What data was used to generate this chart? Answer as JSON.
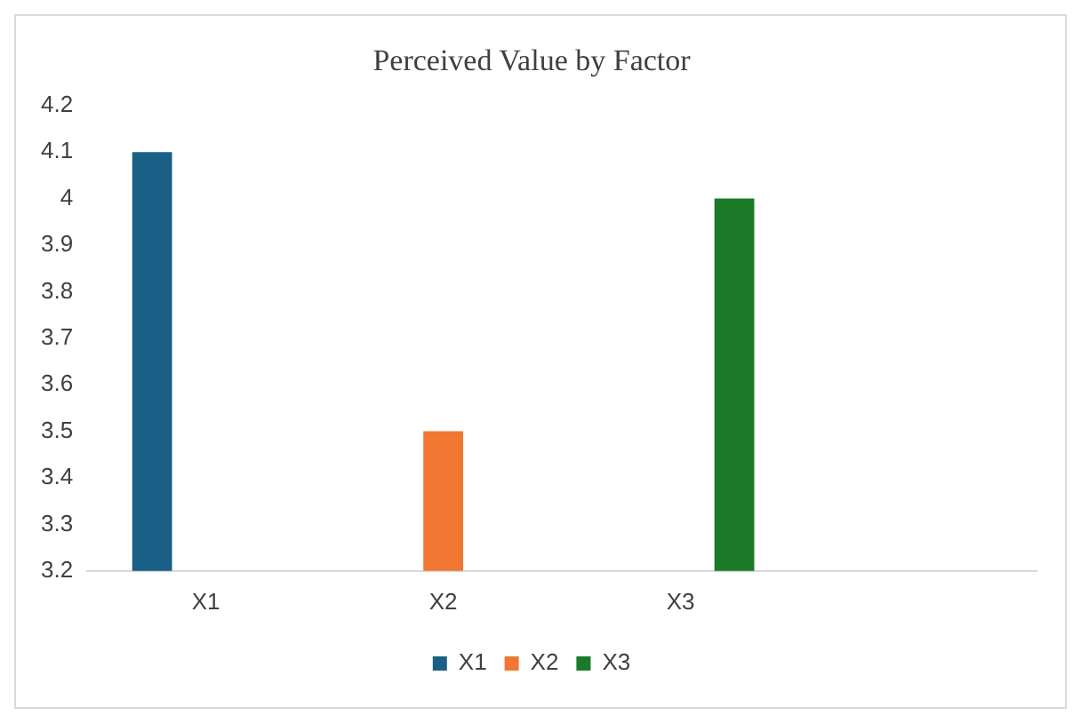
{
  "chart_data": {
    "type": "bar",
    "title": "Perceived Value by Factor",
    "categories": [
      "X1",
      "X2",
      "X3",
      null
    ],
    "series": [
      {
        "name": "X1",
        "color": "#1a5f85",
        "values": [
          4.1,
          null,
          null,
          null
        ]
      },
      {
        "name": "X2",
        "color": "#f07832",
        "values": [
          null,
          3.5,
          null,
          null
        ]
      },
      {
        "name": "X3",
        "color": "#1a7a27",
        "values": [
          null,
          null,
          4.0,
          null
        ]
      }
    ],
    "ylim": [
      3.2,
      4.2
    ],
    "yticks": [
      3.2,
      3.3,
      3.4,
      3.5,
      3.6,
      3.7,
      3.8,
      3.9,
      4,
      4.1,
      4.2
    ],
    "grid": false,
    "legend": "bottom"
  }
}
